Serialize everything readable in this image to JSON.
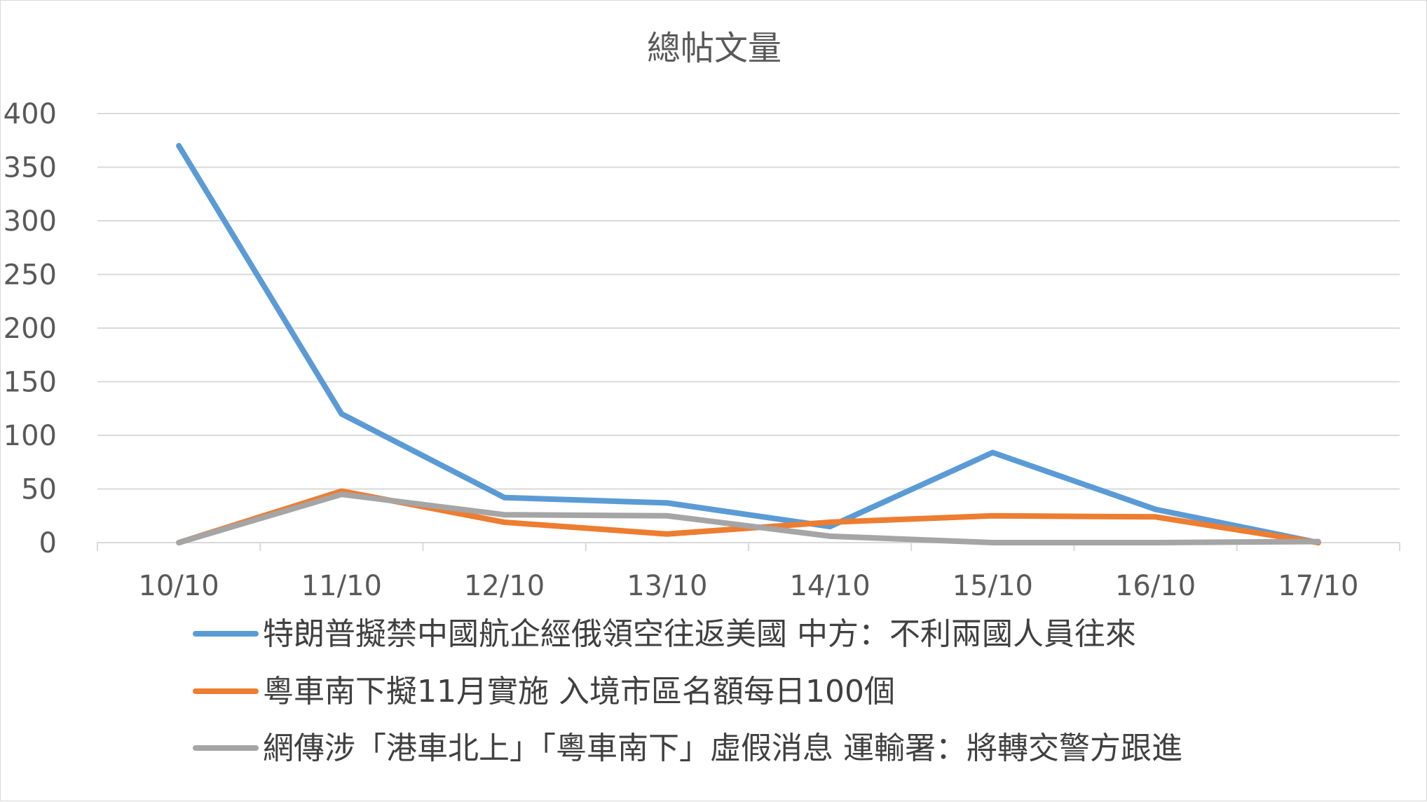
{
  "chart_data": {
    "type": "line",
    "title": "總帖文量",
    "xlabel": "",
    "ylabel": "",
    "categories": [
      "10/10",
      "11/10",
      "12/10",
      "13/10",
      "14/10",
      "15/10",
      "16/10",
      "17/10"
    ],
    "ylim": [
      0,
      400
    ],
    "yticks": [
      0,
      50,
      100,
      150,
      200,
      250,
      300,
      350,
      400
    ],
    "grid": true,
    "legend_position": "bottom",
    "series": [
      {
        "name": "特朗普擬禁中國航企經俄領空往返美國 中方：不利兩國人員往來",
        "color": "#5b9bd5",
        "values": [
          370,
          120,
          42,
          37,
          15,
          84,
          31,
          0
        ]
      },
      {
        "name": "粵車南下擬11月實施 入境市區名額每日100個",
        "color": "#ed7d31",
        "values": [
          0,
          48,
          19,
          8,
          19,
          25,
          24,
          0
        ]
      },
      {
        "name": "網傳涉「港車北上」「粵車南下」虛假消息 運輸署：將轉交警方跟進",
        "color": "#a5a5a5",
        "values": [
          0,
          45,
          26,
          25,
          6,
          0,
          0,
          1
        ]
      }
    ]
  }
}
